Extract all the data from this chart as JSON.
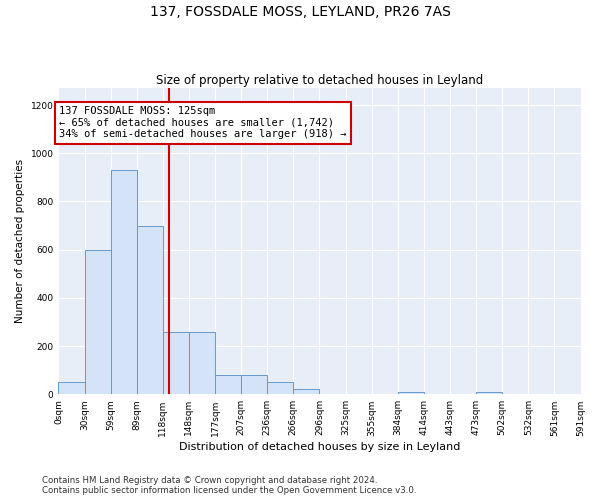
{
  "title": "137, FOSSDALE MOSS, LEYLAND, PR26 7AS",
  "subtitle": "Size of property relative to detached houses in Leyland",
  "xlabel": "Distribution of detached houses by size in Leyland",
  "ylabel": "Number of detached properties",
  "bar_color": "#d4e3f7",
  "bar_edge_color": "#6699cc",
  "background_color": "#e8eef8",
  "grid_color": "#ffffff",
  "vline_x": 125,
  "vline_color": "#cc0000",
  "annotation_line1": "137 FOSSDALE MOSS: 125sqm",
  "annotation_line2": "← 65% of detached houses are smaller (1,742)",
  "annotation_line3": "34% of semi-detached houses are larger (918) →",
  "annotation_box_edgecolor": "#cc0000",
  "bin_edges": [
    0,
    29.5,
    59,
    88.5,
    118,
    147.5,
    177,
    206.5,
    236,
    265.5,
    295,
    324.5,
    354,
    383.5,
    413,
    442.5,
    472,
    501.5,
    531,
    560.5,
    590
  ],
  "counts": [
    50,
    600,
    930,
    700,
    260,
    260,
    80,
    80,
    50,
    20,
    0,
    0,
    0,
    10,
    0,
    0,
    10,
    0,
    0,
    0
  ],
  "tick_labels": [
    "0sqm",
    "30sqm",
    "59sqm",
    "89sqm",
    "118sqm",
    "148sqm",
    "177sqm",
    "207sqm",
    "236sqm",
    "266sqm",
    "296sqm",
    "325sqm",
    "355sqm",
    "384sqm",
    "414sqm",
    "443sqm",
    "473sqm",
    "502sqm",
    "532sqm",
    "561sqm",
    "591sqm"
  ],
  "ylim": [
    0,
    1270
  ],
  "yticks": [
    0,
    200,
    400,
    600,
    800,
    1000,
    1200
  ],
  "footer_line1": "Contains HM Land Registry data © Crown copyright and database right 2024.",
  "footer_line2": "Contains public sector information licensed under the Open Government Licence v3.0.",
  "figsize": [
    6.0,
    5.0
  ],
  "dpi": 100
}
